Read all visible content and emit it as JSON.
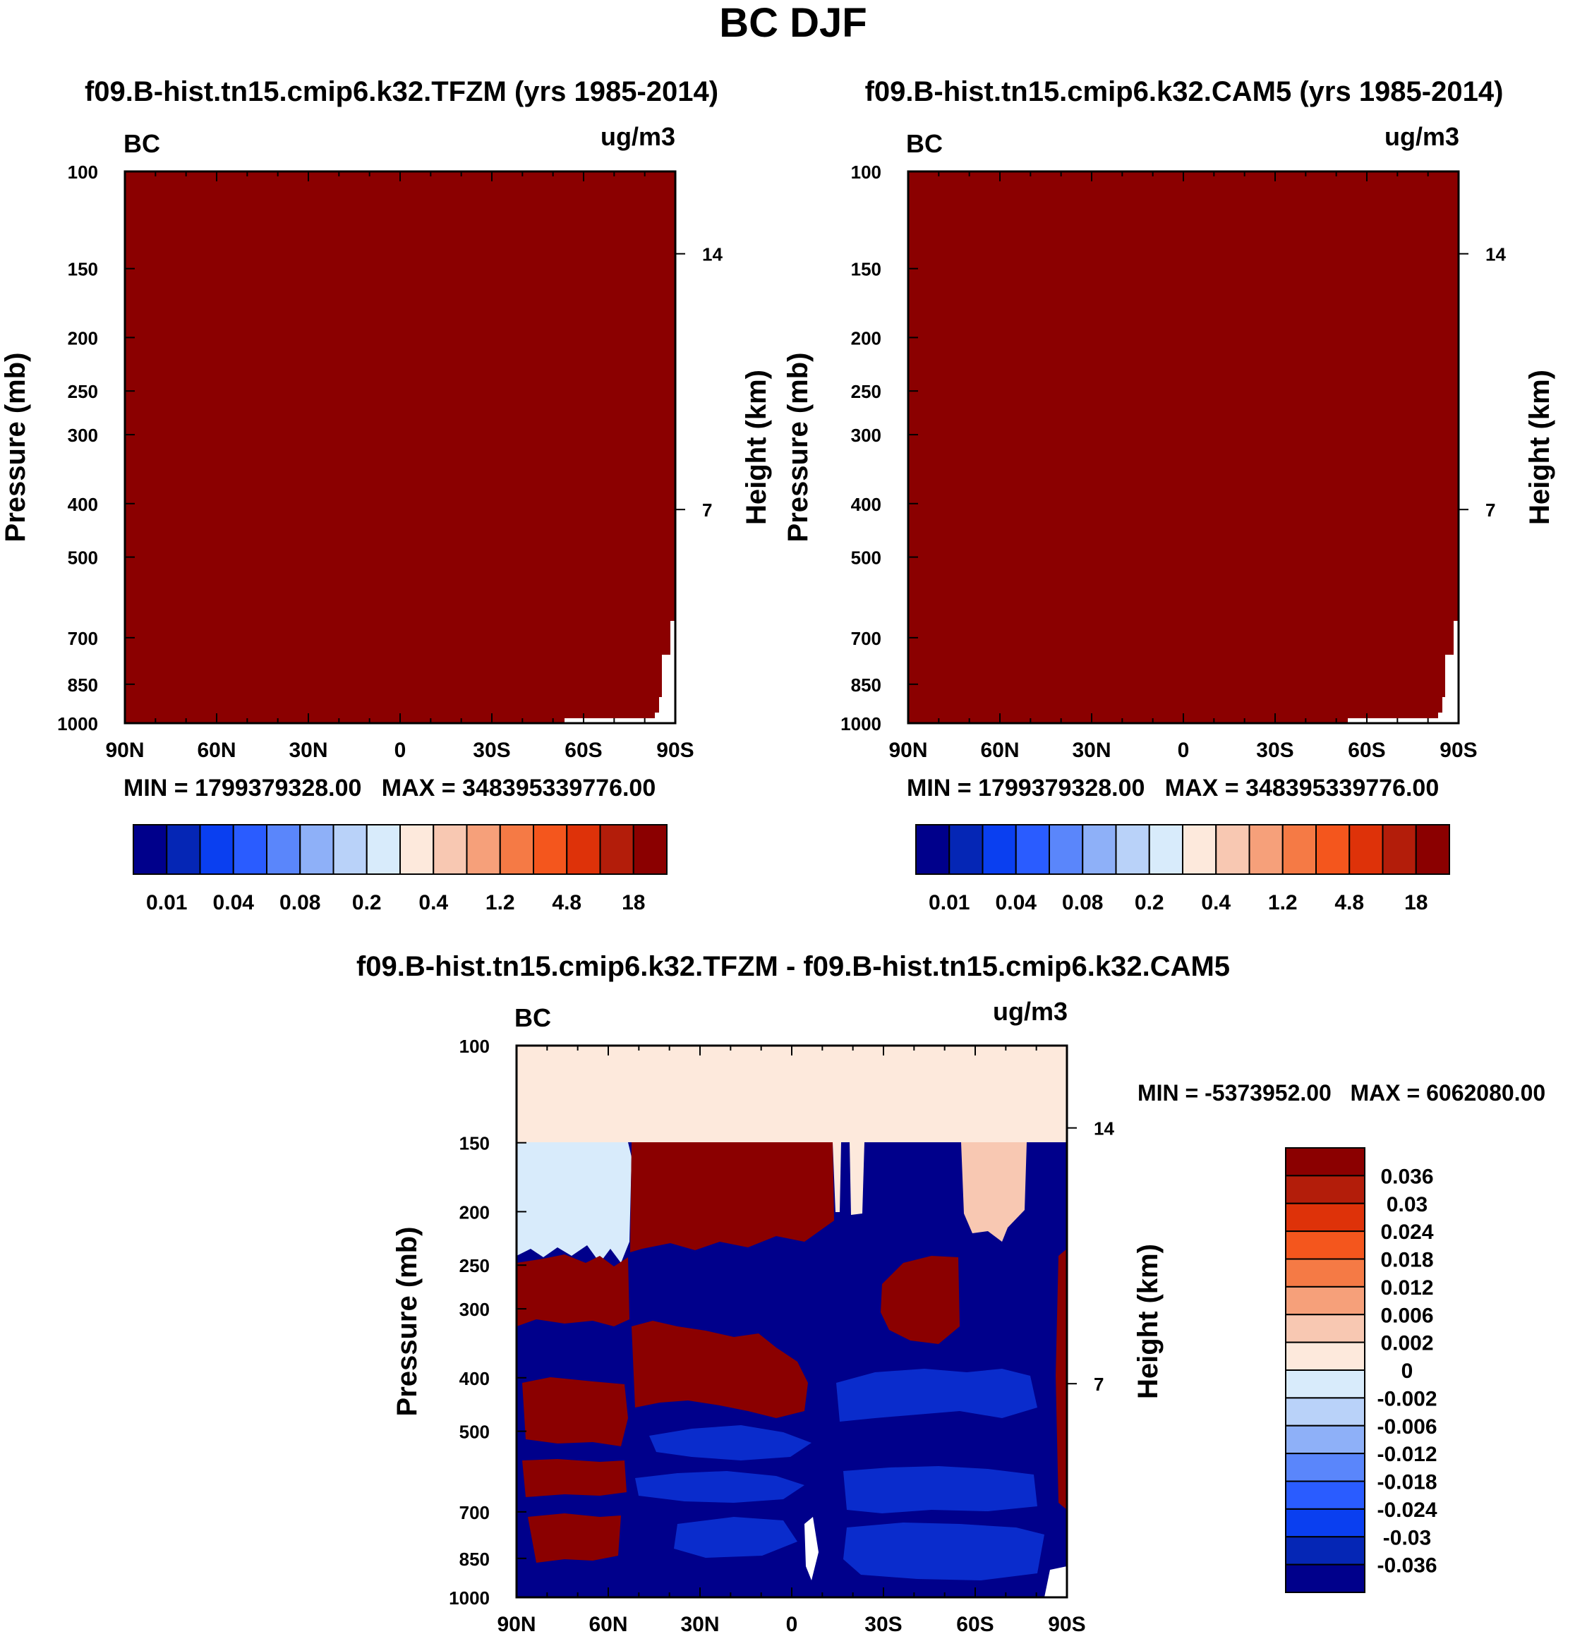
{
  "page": {
    "title": "BC DJF"
  },
  "colors": {
    "dark_red": "#8b0000",
    "light_blue": "#d8ebfb",
    "dark_navy": "#00008b",
    "blue": "#0a2ccc",
    "pale_peach": "#fde9dc",
    "peach": "#f8c8b2"
  },
  "chart_data": [
    {
      "type": "heatmap",
      "title": "f09.B-hist.tn15.cmip6.k32.TFZM (yrs 1985-2014)",
      "variable": "BC",
      "units": "ug/m3",
      "ylabel": "Pressure (mb)",
      "ylabel_right": "Height (km)",
      "x_ticks": [
        "90N",
        "60N",
        "30N",
        "0",
        "30S",
        "60S",
        "90S"
      ],
      "y_ticks": [
        "100",
        "150",
        "200",
        "250",
        "300",
        "400",
        "500",
        "700",
        "850",
        "1000"
      ],
      "y_ticks_right": [
        "14",
        "7"
      ],
      "stats": "MIN = 1799379328.00   MAX = 348395339776.00",
      "colorbar_labels": [
        "0.01",
        "0.04",
        "0.08",
        "0.2",
        "0.4",
        "1.2",
        "4.8",
        "18"
      ],
      "fill": "#8b0000"
    },
    {
      "type": "heatmap",
      "title": "f09.B-hist.tn15.cmip6.k32.CAM5 (yrs 1985-2014)",
      "variable": "BC",
      "units": "ug/m3",
      "ylabel": "Pressure (mb)",
      "ylabel_right": "Height (km)",
      "x_ticks": [
        "90N",
        "60N",
        "30N",
        "0",
        "30S",
        "60S",
        "90S"
      ],
      "y_ticks": [
        "100",
        "150",
        "200",
        "250",
        "300",
        "400",
        "500",
        "700",
        "850",
        "1000"
      ],
      "y_ticks_right": [
        "14",
        "7"
      ],
      "stats": "MIN = 1799379328.00   MAX = 348395339776.00",
      "colorbar_labels": [
        "0.01",
        "0.04",
        "0.08",
        "0.2",
        "0.4",
        "1.2",
        "4.8",
        "18"
      ],
      "fill": "#8b0000"
    },
    {
      "type": "heatmap",
      "title": "f09.B-hist.tn15.cmip6.k32.TFZM - f09.B-hist.tn15.cmip6.k32.CAM5",
      "variable": "BC",
      "units": "ug/m3",
      "ylabel": "Pressure (mb)",
      "ylabel_right": "Height (km)",
      "x_ticks": [
        "90N",
        "60N",
        "30N",
        "0",
        "30S",
        "60S",
        "90S"
      ],
      "y_ticks": [
        "100",
        "150",
        "200",
        "250",
        "300",
        "400",
        "500",
        "700",
        "850",
        "1000"
      ],
      "y_ticks_right": [
        "14",
        "7"
      ],
      "stats": "MIN = -5373952.00   MAX = 6062080.00",
      "colorbar_labels": [
        "0.036",
        "0.03",
        "0.024",
        "0.018",
        "0.012",
        "0.006",
        "0.002",
        "0",
        "-0.002",
        "-0.006",
        "-0.012",
        "-0.018",
        "-0.024",
        "-0.03",
        "-0.036"
      ]
    }
  ],
  "colorbar_colors": [
    "#00008b",
    "#0526b5",
    "#0a3ff0",
    "#2a5cff",
    "#5a86fb",
    "#8eb0f8",
    "#b9d2f9",
    "#d8ebfb",
    "#fde9dc",
    "#f8c8b2",
    "#f6a07a",
    "#f57a45",
    "#f4561d",
    "#de3209",
    "#b31d0a",
    "#8b0000"
  ],
  "diff_colorbar_colors": [
    "#8b0000",
    "#b31d0a",
    "#de3209",
    "#f4561d",
    "#f57a45",
    "#f6a07a",
    "#f8c8b2",
    "#fde9dc",
    "#d8ebfb",
    "#b9d2f9",
    "#8eb0f8",
    "#5a86fb",
    "#2a5cff",
    "#0a3ff0",
    "#0526b5",
    "#00008b"
  ]
}
